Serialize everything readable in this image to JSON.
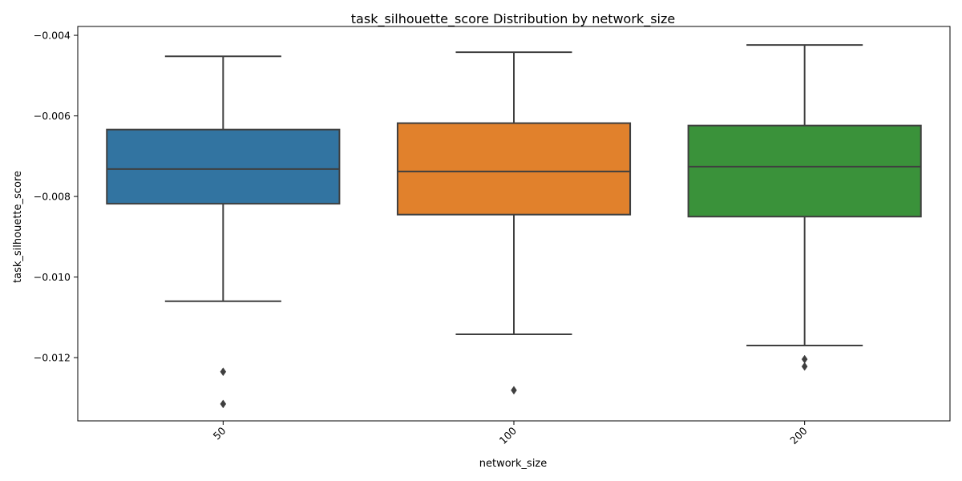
{
  "chart_data": {
    "type": "box",
    "title": "task_silhouette_score Distribution by network_size",
    "xlabel": "network_size",
    "ylabel": "task_silhouette_score",
    "ylim": [
      -0.01357,
      -0.00378
    ],
    "yticks": [
      -0.004,
      -0.006,
      -0.008,
      -0.01,
      -0.012
    ],
    "ytick_labels": [
      "−0.004",
      "−0.006",
      "−0.008",
      "−0.010",
      "−0.012"
    ],
    "xtick_rotation_deg": 45,
    "grid": false,
    "categories": [
      "50",
      "100",
      "200"
    ],
    "boxes": [
      {
        "category": "50",
        "color": "#3274a1",
        "whisker_high": -0.00452,
        "q3": -0.00634,
        "median": -0.00732,
        "q1": -0.00818,
        "whisker_low": -0.0106,
        "outliers": [
          -0.01235,
          -0.01315
        ]
      },
      {
        "category": "100",
        "color": "#e1812c",
        "whisker_high": -0.00442,
        "q3": -0.00618,
        "median": -0.00738,
        "q1": -0.00845,
        "whisker_low": -0.01142,
        "outliers": [
          -0.01281
        ]
      },
      {
        "category": "200",
        "color": "#3a923a",
        "whisker_high": -0.00424,
        "q3": -0.00624,
        "median": -0.00726,
        "q1": -0.0085,
        "whisker_low": -0.0117,
        "outliers": [
          -0.01204,
          -0.01222
        ]
      }
    ]
  }
}
